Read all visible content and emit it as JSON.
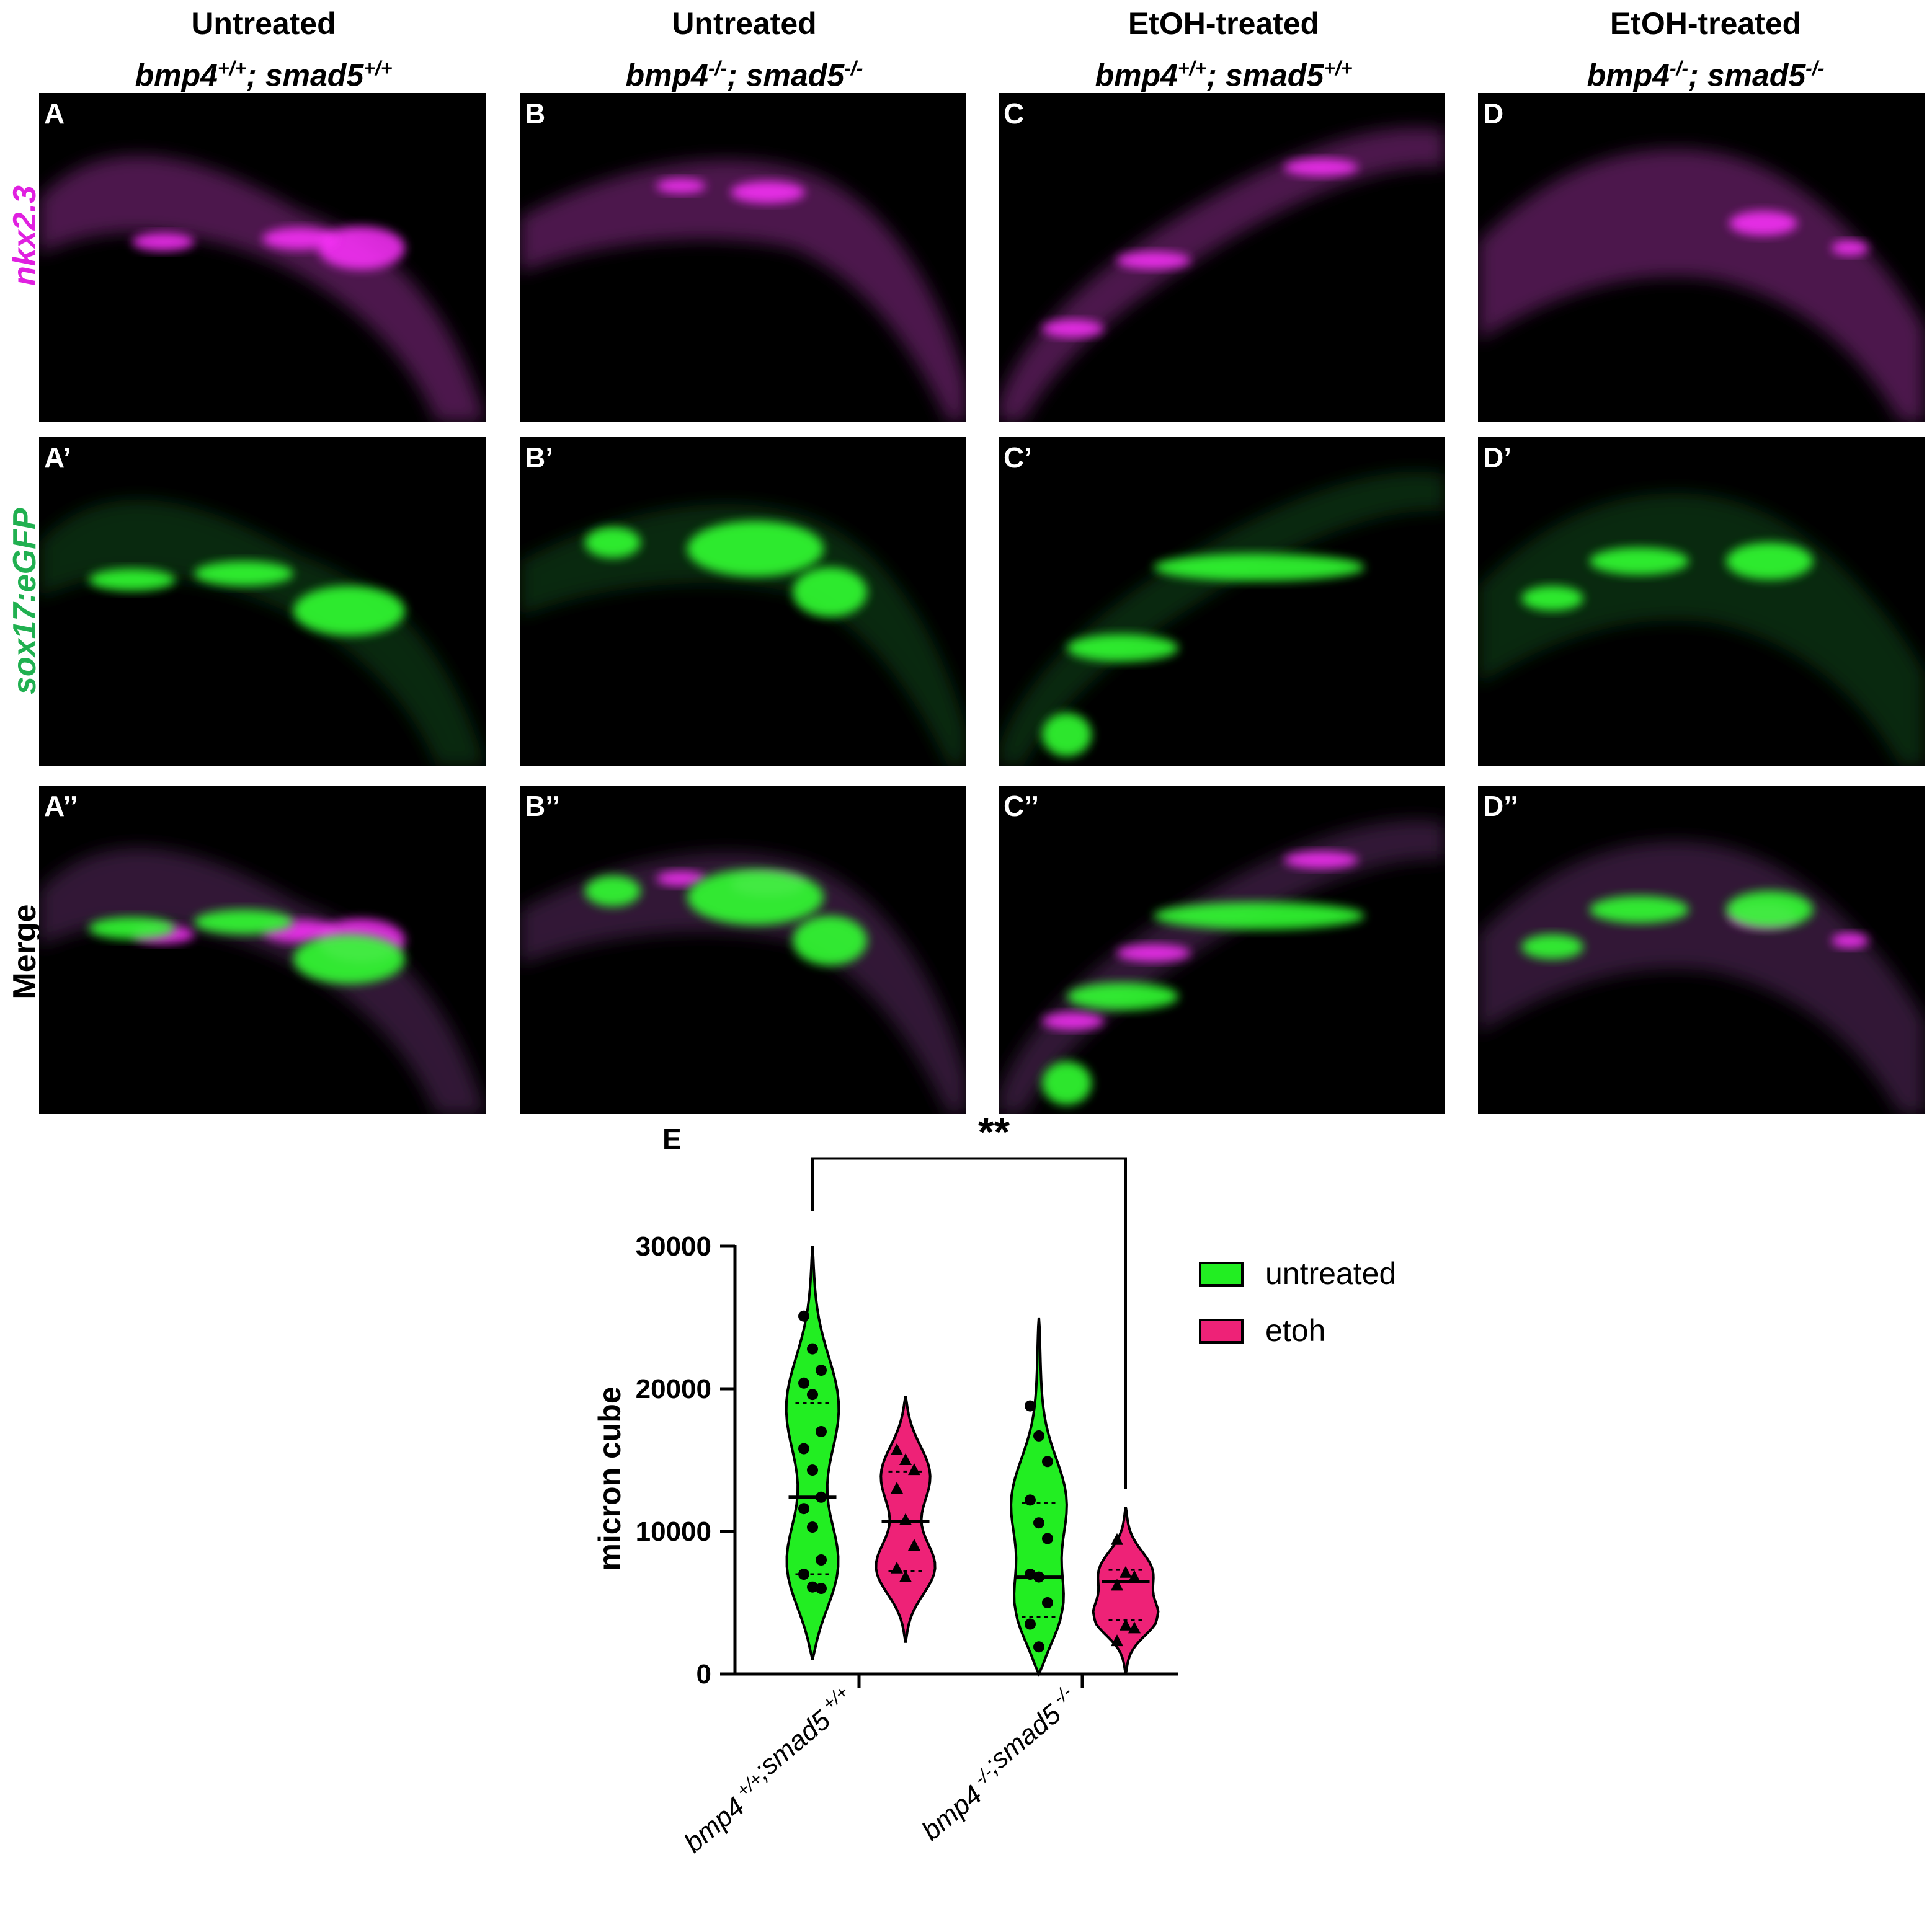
{
  "columns": [
    {
      "treatment": "Untreated",
      "gene1": "bmp4",
      "sup1": "+/+",
      "gene2": "smad5",
      "sup2": "+/+"
    },
    {
      "treatment": "Untreated",
      "gene1": "bmp4",
      "sup1": "-/-",
      "gene2": "smad5",
      "sup2": "-/-"
    },
    {
      "treatment": "EtOH-treated",
      "gene1": "bmp4",
      "sup1": "+/+",
      "gene2": "smad5",
      "sup2": "+/+"
    },
    {
      "treatment": "EtOH-treated",
      "gene1": "bmp4",
      "sup1": "-/-",
      "gene2": "smad5",
      "sup2": "-/-"
    }
  ],
  "rows": [
    {
      "label": "nkx2.3",
      "color": "#e020e0"
    },
    {
      "label": "sox17:eGFP",
      "color": "#20c060"
    },
    {
      "label": "Merge",
      "color": "#000000"
    }
  ],
  "panel_labels": [
    [
      "A",
      "B",
      "C",
      "D"
    ],
    [
      "A’",
      "B’",
      "C’",
      "D’"
    ],
    [
      "A’’",
      "B’’",
      "C’’",
      "D’’"
    ]
  ],
  "figure_e_label": "E",
  "chart_data": {
    "type": "violin",
    "ylabel": "micron cube",
    "ylim": [
      0,
      30000
    ],
    "yticks": [
      0,
      10000,
      20000,
      30000
    ],
    "categories": [
      "bmp4 +/+;smad5 +/+",
      "bmp4 -/-;smad5 -/-"
    ],
    "category_parts": [
      {
        "g1": "bmp4",
        "s1": "+/+",
        "sep": ";",
        "g2": "smad5",
        "s2": "+/+"
      },
      {
        "g1": "bmp4",
        "s1": "-/-",
        "sep": ";",
        "g2": "smad5",
        "s2": "-/-"
      }
    ],
    "legend": [
      {
        "name": "untreated",
        "color": "#22ee22"
      },
      {
        "name": "etoh",
        "color": "#ee2277"
      }
    ],
    "legend_position": "right",
    "significance": {
      "label": "**",
      "from": "bmp4 +/+;smad5 +/+ untreated",
      "to": "bmp4 -/-;smad5 -/- etoh"
    },
    "series": [
      {
        "name": "untreated",
        "category": "bmp4 +/+;smad5 +/+",
        "color": "#22ee22",
        "range": [
          1000,
          30000
        ],
        "median": 12400,
        "quartiles": [
          7000,
          19000
        ],
        "points": [
          25100,
          22800,
          21300,
          20400,
          19600,
          17000,
          15800,
          14300,
          12400,
          11600,
          10300,
          8000,
          7000,
          6100,
          6000
        ]
      },
      {
        "name": "etoh",
        "category": "bmp4 +/+;smad5 +/+",
        "color": "#ee2277",
        "range": [
          2200,
          19500
        ],
        "median": 10700,
        "quartiles": [
          7200,
          14200
        ],
        "points": [
          15700,
          15000,
          14300,
          13000,
          10800,
          9000,
          7400,
          6800
        ]
      },
      {
        "name": "untreated",
        "category": "bmp4 -/-;smad5 -/-",
        "color": "#22ee22",
        "range": [
          0,
          25000
        ],
        "median": 6800,
        "quartiles": [
          4000,
          12000
        ],
        "points": [
          18800,
          16700,
          14900,
          12200,
          10600,
          9500,
          7000,
          6800,
          5000,
          3500,
          1900
        ]
      },
      {
        "name": "etoh",
        "category": "bmp4 -/-;smad5 -/-",
        "color": "#ee2277",
        "range": [
          0,
          11700
        ],
        "median": 6500,
        "quartiles": [
          3800,
          7300
        ],
        "points": [
          9400,
          7100,
          6800,
          6200,
          3400,
          3200,
          2300
        ]
      }
    ]
  }
}
